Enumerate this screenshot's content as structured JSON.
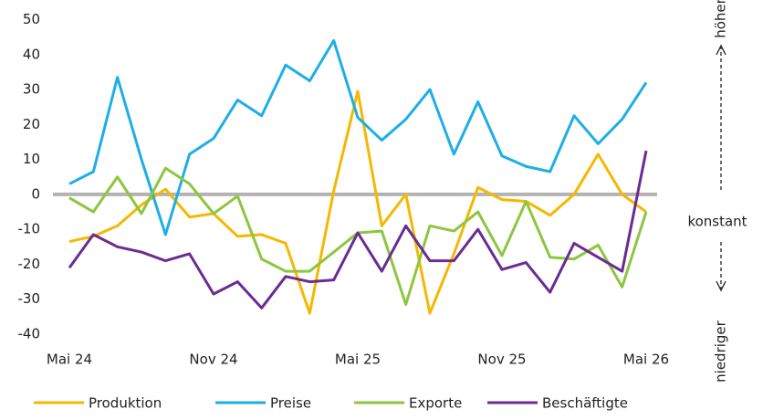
{
  "chart_data": {
    "type": "line",
    "categories": [
      "Mai 24",
      null,
      null,
      null,
      null,
      null,
      "Nov 24",
      null,
      null,
      null,
      null,
      null,
      "Mai 25",
      null,
      null,
      null,
      null,
      null,
      "Nov 25",
      null,
      null,
      null,
      null,
      null,
      "Mai 26"
    ],
    "series": [
      {
        "name": "Produktion",
        "color": "#f5b800",
        "values": [
          -13.5,
          -12,
          -9,
          -3,
          1.5,
          -6.5,
          -5.5,
          -12,
          -11.5,
          -14,
          -34,
          1,
          29.5,
          -9,
          0,
          -34,
          -17,
          2,
          -1.5,
          -2,
          -6,
          0,
          11.5,
          0,
          -5
        ]
      },
      {
        "name": "Preise",
        "color": "#1eaee6",
        "values": [
          3,
          6.5,
          33.5,
          10,
          -11.5,
          11.5,
          16,
          27,
          22.5,
          37,
          32.5,
          44,
          22,
          15.5,
          21.5,
          30,
          11.5,
          26.5,
          11,
          8,
          6.5,
          22.5,
          14.5,
          21.5,
          32
        ]
      },
      {
        "name": "Exporte",
        "color": "#8dc63f",
        "values": [
          -1,
          -5,
          5,
          -5.5,
          7.5,
          3,
          -5.5,
          -0.5,
          -18.5,
          -22,
          -22,
          -16.5,
          -11,
          -10.5,
          -31.5,
          -9,
          -10.5,
          -5,
          -17.5,
          -2,
          -18,
          -18.5,
          -14.5,
          -26.5,
          -5
        ]
      },
      {
        "name": "Beschäftigte",
        "color": "#6a2c91",
        "values": [
          -21,
          -11.5,
          -15,
          -16.5,
          -19,
          -17,
          -28.5,
          -25,
          -32.5,
          -23.5,
          -25,
          -24.5,
          -11,
          -22,
          -9,
          -19,
          -19,
          -10,
          -21.5,
          -19.5,
          -28,
          -14,
          -18,
          -22,
          12.5
        ]
      }
    ],
    "ylim": [
      -40,
      50
    ],
    "yticks": [
      -40,
      -30,
      -20,
      -10,
      0,
      10,
      20,
      30,
      40,
      50
    ],
    "annotations": [
      "höher",
      "konstant",
      "niedriger"
    ],
    "legend": "bottom"
  }
}
